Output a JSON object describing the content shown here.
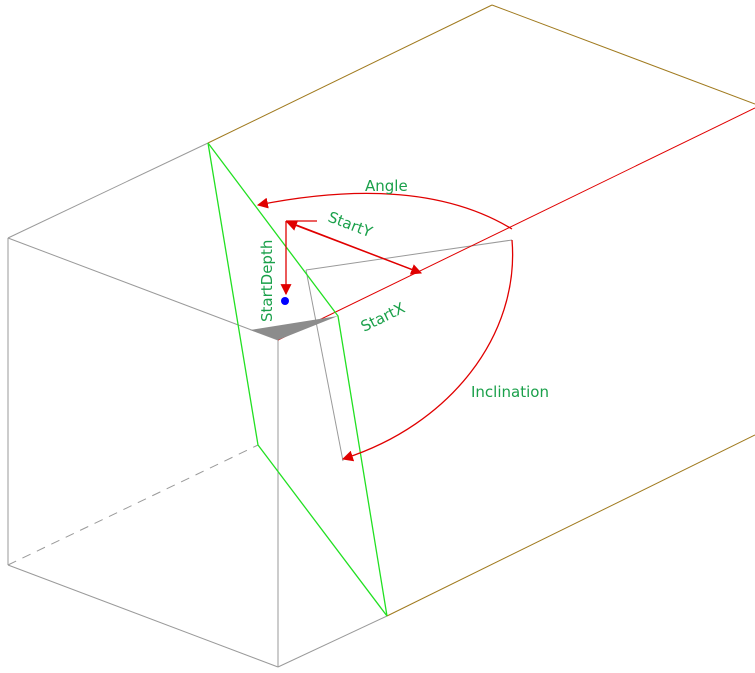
{
  "labels": {
    "angle": "Angle",
    "start_y": "StartY",
    "start_depth": "StartDepth",
    "start_x": "StartX",
    "inclination": "Inclination"
  },
  "colors": {
    "box_edges": "#9a9a9a",
    "top_face_edges": "#a07a1e",
    "cut_plane": "#22e022",
    "dimension": "#e00000",
    "label_text": "#1aa04a",
    "start_point": "#0000ff",
    "shaded_face": "#8c8c8c"
  }
}
